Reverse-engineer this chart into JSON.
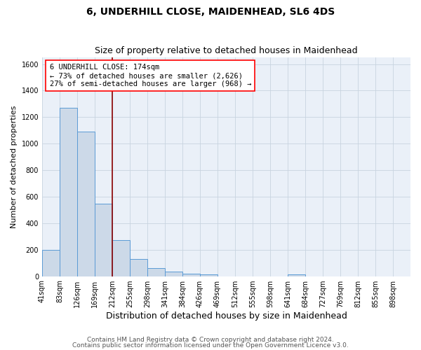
{
  "title1": "6, UNDERHILL CLOSE, MAIDENHEAD, SL6 4DS",
  "title2": "Size of property relative to detached houses in Maidenhead",
  "xlabel": "Distribution of detached houses by size in Maidenhead",
  "ylabel": "Number of detached properties",
  "footnote1": "Contains HM Land Registry data © Crown copyright and database right 2024.",
  "footnote2": "Contains public sector information licensed under the Open Government Licence v3.0.",
  "annotation_line1": "6 UNDERHILL CLOSE: 174sqm",
  "annotation_line2": "← 73% of detached houses are smaller (2,626)",
  "annotation_line3": "27% of semi-detached houses are larger (968) →",
  "bar_labels": [
    "41sqm",
    "83sqm",
    "126sqm",
    "169sqm",
    "212sqm",
    "255sqm",
    "298sqm",
    "341sqm",
    "384sqm",
    "426sqm",
    "469sqm",
    "512sqm",
    "555sqm",
    "598sqm",
    "641sqm",
    "684sqm",
    "727sqm",
    "769sqm",
    "812sqm",
    "855sqm",
    "898sqm"
  ],
  "bar_values": [
    197,
    1270,
    1093,
    549,
    270,
    131,
    62,
    35,
    18,
    12,
    0,
    0,
    0,
    0,
    12,
    0,
    0,
    0,
    0,
    0,
    0
  ],
  "bar_color": "#ccd9e8",
  "bar_edge_color": "#5b9bd5",
  "vline_color": "#8b0000",
  "vline_bar_index": 3,
  "ylim": [
    0,
    1650
  ],
  "yticks": [
    0,
    200,
    400,
    600,
    800,
    1000,
    1200,
    1400,
    1600
  ],
  "grid_color": "#c8d4e0",
  "bg_color": "#eaf0f8",
  "title1_fontsize": 10,
  "title2_fontsize": 9,
  "xlabel_fontsize": 9,
  "ylabel_fontsize": 8,
  "tick_fontsize": 7,
  "annot_fontsize": 7.5,
  "footnote_fontsize": 6.5
}
